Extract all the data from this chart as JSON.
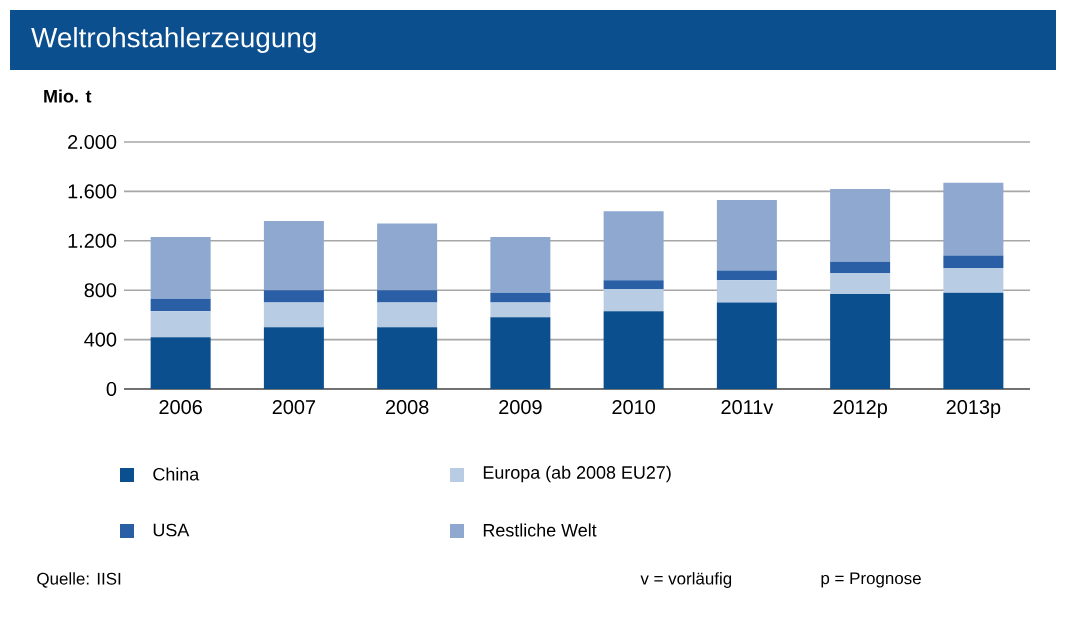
{
  "chart_data": {
    "type": "bar",
    "stacked": true,
    "title": "Weltrohstahlerzeugung",
    "ylabel": "Mio. t",
    "categories": [
      "2006",
      "2007",
      "2008",
      "2009",
      "2010",
      "2011v",
      "2012p",
      "2013p"
    ],
    "series": [
      {
        "name": "China",
        "color": "#0b4f8e",
        "values": [
          420,
          500,
          500,
          580,
          630,
          700,
          770,
          780
        ]
      },
      {
        "name": "Europa (ab 2008 EU27)",
        "color": "#b8cce4",
        "values": [
          210,
          200,
          200,
          120,
          180,
          180,
          170,
          200
        ]
      },
      {
        "name": "USA",
        "color": "#2a5fa6",
        "values": [
          100,
          100,
          100,
          80,
          70,
          80,
          90,
          100
        ]
      },
      {
        "name": "Restliche Welt",
        "color": "#8ea8d0",
        "values": [
          500,
          560,
          540,
          450,
          560,
          570,
          590,
          590
        ]
      }
    ],
    "ylim": [
      0,
      2000
    ],
    "yticks": [
      {
        "value": 0,
        "label": "0"
      },
      {
        "value": 400,
        "label": "400"
      },
      {
        "value": 800,
        "label": "800"
      },
      {
        "value": 1200,
        "label": "1.200"
      },
      {
        "value": 1600,
        "label": "1.600"
      },
      {
        "value": 2000,
        "label": "2.000"
      }
    ],
    "grid": "y",
    "legend": "bottom",
    "annotations": [
      "Quelle: IISI",
      "v = vorläufig",
      "p = Prognose"
    ]
  }
}
